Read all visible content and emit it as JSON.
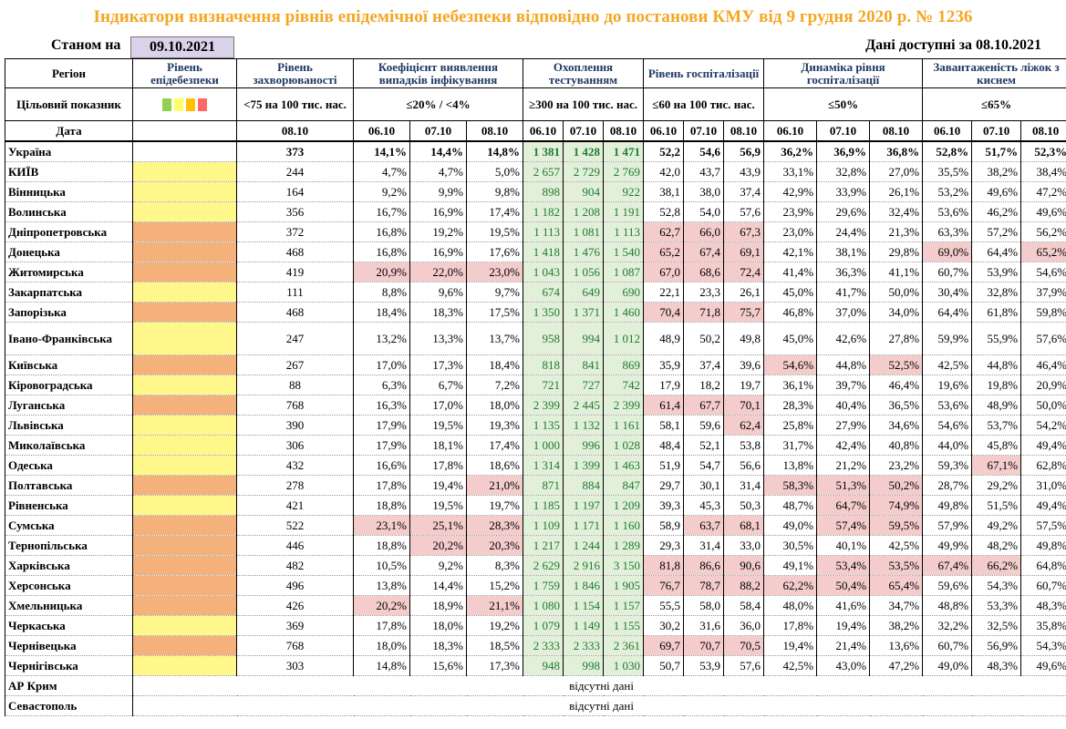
{
  "title": "Індикатори визначення рівнів епідемічної небезпеки відповідно до постанови КМУ від 9 грудня 2020 р. № 1236",
  "as_of_label": "Станом на",
  "as_of_date": "09.10.2021",
  "available_label": "Дані доступні за 08.10.2021",
  "headers": {
    "region": "Регіон",
    "level": "Рівень епідебезпеки",
    "incidence": "Рівень захворюваності",
    "positivity": "Коефіцієнт виявлення випадків інфікування",
    "testing": "Охоплення тестуванням",
    "hosp": "Рівень госпіталізації",
    "hosp_dyn": "Динаміка рівня госпіталізації",
    "oxygen": "Завантаженість ліжок з киснем",
    "target": "Цільовий показник",
    "date": "Дата"
  },
  "targets": {
    "incidence": "<75 на 100 тис. нас.",
    "positivity": "≤20% / <4%",
    "testing": "≥300 на 100 тис. нас.",
    "hosp": "≤60 на 100 тис. нас.",
    "hosp_dyn": "≤50%",
    "oxygen": "≤65%"
  },
  "legend_colors": [
    "#92d050",
    "#ffff66",
    "#ffc000",
    "#ff6666"
  ],
  "dates": {
    "incidence": "08.10",
    "triple": [
      "06.10",
      "07.10",
      "08.10"
    ]
  },
  "ukraine": {
    "name": "Україна",
    "incidence": "373",
    "positivity": [
      "14,1%",
      "14,4%",
      "14,8%"
    ],
    "testing": [
      "1 381",
      "1 428",
      "1 471"
    ],
    "hosp": [
      "52,2",
      "54,6",
      "56,9"
    ],
    "hosp_dyn": [
      "36,2%",
      "36,9%",
      "36,8%"
    ],
    "oxygen": [
      "52,8%",
      "51,7%",
      "52,3%"
    ]
  },
  "regions": [
    {
      "name": "КИЇВ",
      "level": "yellow",
      "incidence": "244",
      "positivity": [
        "4,7%",
        "4,7%",
        "5,0%"
      ],
      "testing": [
        "2 657",
        "2 729",
        "2 769"
      ],
      "hosp": [
        "42,0",
        "43,7",
        "43,9"
      ],
      "hosp_dyn": [
        "33,1%",
        "32,8%",
        "27,0%"
      ],
      "oxygen": [
        "35,5%",
        "38,2%",
        "38,4%"
      ],
      "red": []
    },
    {
      "name": "Вінницька",
      "level": "yellow",
      "incidence": "164",
      "positivity": [
        "9,2%",
        "9,9%",
        "9,8%"
      ],
      "testing": [
        "898",
        "904",
        "922"
      ],
      "hosp": [
        "38,1",
        "38,0",
        "37,4"
      ],
      "hosp_dyn": [
        "42,9%",
        "33,9%",
        "26,1%"
      ],
      "oxygen": [
        "53,2%",
        "49,6%",
        "47,2%"
      ],
      "red": []
    },
    {
      "name": "Волинська",
      "level": "yellow",
      "incidence": "356",
      "positivity": [
        "16,7%",
        "16,9%",
        "17,4%"
      ],
      "testing": [
        "1 182",
        "1 208",
        "1 191"
      ],
      "hosp": [
        "52,8",
        "54,0",
        "57,6"
      ],
      "hosp_dyn": [
        "23,9%",
        "29,6%",
        "32,4%"
      ],
      "oxygen": [
        "53,6%",
        "46,2%",
        "49,6%"
      ],
      "red": []
    },
    {
      "name": "Дніпропетровська",
      "level": "orange",
      "incidence": "372",
      "positivity": [
        "16,8%",
        "19,2%",
        "19,5%"
      ],
      "testing": [
        "1 113",
        "1 081",
        "1 113"
      ],
      "hosp": [
        "62,7",
        "66,0",
        "67,3"
      ],
      "hosp_dyn": [
        "23,0%",
        "24,4%",
        "21,3%"
      ],
      "oxygen": [
        "63,3%",
        "57,2%",
        "56,2%"
      ],
      "red": [
        "h0",
        "h1",
        "h2"
      ]
    },
    {
      "name": "Донецька",
      "level": "orange",
      "incidence": "468",
      "positivity": [
        "16,8%",
        "16,9%",
        "17,6%"
      ],
      "testing": [
        "1 418",
        "1 476",
        "1 540"
      ],
      "hosp": [
        "65,2",
        "67,4",
        "69,1"
      ],
      "hosp_dyn": [
        "42,1%",
        "38,1%",
        "29,8%"
      ],
      "oxygen": [
        "69,0%",
        "64,4%",
        "65,2%"
      ],
      "red": [
        "h0",
        "h1",
        "h2",
        "o0",
        "o2"
      ]
    },
    {
      "name": "Житомирська",
      "level": "orange",
      "incidence": "419",
      "positivity": [
        "20,9%",
        "22,0%",
        "23,0%"
      ],
      "testing": [
        "1 043",
        "1 056",
        "1 087"
      ],
      "hosp": [
        "67,0",
        "68,6",
        "72,4"
      ],
      "hosp_dyn": [
        "41,4%",
        "36,3%",
        "41,1%"
      ],
      "oxygen": [
        "60,7%",
        "53,9%",
        "54,6%"
      ],
      "red": [
        "p0",
        "p1",
        "p2",
        "h0",
        "h1",
        "h2"
      ]
    },
    {
      "name": "Закарпатська",
      "level": "yellow",
      "incidence": "111",
      "positivity": [
        "8,8%",
        "9,6%",
        "9,7%"
      ],
      "testing": [
        "674",
        "649",
        "690"
      ],
      "hosp": [
        "22,1",
        "23,3",
        "26,1"
      ],
      "hosp_dyn": [
        "45,0%",
        "41,7%",
        "50,0%"
      ],
      "oxygen": [
        "30,4%",
        "32,8%",
        "37,9%"
      ],
      "red": []
    },
    {
      "name": "Запорізька",
      "level": "orange",
      "incidence": "468",
      "positivity": [
        "18,4%",
        "18,3%",
        "17,5%"
      ],
      "testing": [
        "1 350",
        "1 371",
        "1 460"
      ],
      "hosp": [
        "70,4",
        "71,8",
        "75,7"
      ],
      "hosp_dyn": [
        "46,8%",
        "37,0%",
        "34,0%"
      ],
      "oxygen": [
        "64,4%",
        "61,8%",
        "59,8%"
      ],
      "red": [
        "h0",
        "h1",
        "h2"
      ]
    },
    {
      "name": "Івано-Франківська",
      "level": "yellow",
      "incidence": "247",
      "positivity": [
        "13,2%",
        "13,3%",
        "13,7%"
      ],
      "testing": [
        "958",
        "994",
        "1 012"
      ],
      "hosp": [
        "48,9",
        "50,2",
        "49,8"
      ],
      "hosp_dyn": [
        "45,0%",
        "42,6%",
        "27,8%"
      ],
      "oxygen": [
        "59,9%",
        "55,9%",
        "57,6%"
      ],
      "red": [],
      "tall": true
    },
    {
      "name": "Київська",
      "level": "orange",
      "incidence": "267",
      "positivity": [
        "17,0%",
        "17,3%",
        "18,4%"
      ],
      "testing": [
        "818",
        "841",
        "869"
      ],
      "hosp": [
        "35,9",
        "37,4",
        "39,6"
      ],
      "hosp_dyn": [
        "54,6%",
        "44,8%",
        "52,5%"
      ],
      "oxygen": [
        "42,5%",
        "44,8%",
        "46,4%"
      ],
      "red": [
        "d0",
        "d2"
      ]
    },
    {
      "name": "Кіровоградська",
      "level": "yellow",
      "incidence": "88",
      "positivity": [
        "6,3%",
        "6,7%",
        "7,2%"
      ],
      "testing": [
        "721",
        "727",
        "742"
      ],
      "hosp": [
        "17,9",
        "18,2",
        "19,7"
      ],
      "hosp_dyn": [
        "36,1%",
        "39,7%",
        "46,4%"
      ],
      "oxygen": [
        "19,6%",
        "19,8%",
        "20,9%"
      ],
      "red": []
    },
    {
      "name": "Луганська",
      "level": "orange",
      "incidence": "768",
      "positivity": [
        "16,3%",
        "17,0%",
        "18,0%"
      ],
      "testing": [
        "2 399",
        "2 445",
        "2 399"
      ],
      "hosp": [
        "61,4",
        "67,7",
        "70,1"
      ],
      "hosp_dyn": [
        "28,3%",
        "40,4%",
        "36,5%"
      ],
      "oxygen": [
        "53,6%",
        "48,9%",
        "50,0%"
      ],
      "red": [
        "h0",
        "h1",
        "h2"
      ]
    },
    {
      "name": "Львівська",
      "level": "yellow",
      "incidence": "390",
      "positivity": [
        "17,9%",
        "19,5%",
        "19,3%"
      ],
      "testing": [
        "1 135",
        "1 132",
        "1 161"
      ],
      "hosp": [
        "58,1",
        "59,6",
        "62,4"
      ],
      "hosp_dyn": [
        "25,8%",
        "27,9%",
        "34,6%"
      ],
      "oxygen": [
        "54,6%",
        "53,7%",
        "54,2%"
      ],
      "red": [
        "h2"
      ]
    },
    {
      "name": "Миколаївська",
      "level": "yellow",
      "incidence": "306",
      "positivity": [
        "17,9%",
        "18,1%",
        "17,4%"
      ],
      "testing": [
        "1 000",
        "996",
        "1 028"
      ],
      "hosp": [
        "48,4",
        "52,1",
        "53,8"
      ],
      "hosp_dyn": [
        "31,7%",
        "42,4%",
        "40,8%"
      ],
      "oxygen": [
        "44,0%",
        "45,8%",
        "49,4%"
      ],
      "red": []
    },
    {
      "name": "Одеська",
      "level": "yellow",
      "incidence": "432",
      "positivity": [
        "16,6%",
        "17,8%",
        "18,6%"
      ],
      "testing": [
        "1 314",
        "1 399",
        "1 463"
      ],
      "hosp": [
        "51,9",
        "54,7",
        "56,6"
      ],
      "hosp_dyn": [
        "13,8%",
        "21,2%",
        "23,2%"
      ],
      "oxygen": [
        "59,3%",
        "67,1%",
        "62,8%"
      ],
      "red": [
        "o1"
      ]
    },
    {
      "name": "Полтавська",
      "level": "orange",
      "incidence": "278",
      "positivity": [
        "17,8%",
        "19,4%",
        "21,0%"
      ],
      "testing": [
        "871",
        "884",
        "847"
      ],
      "hosp": [
        "29,7",
        "30,1",
        "31,4"
      ],
      "hosp_dyn": [
        "58,3%",
        "51,3%",
        "50,2%"
      ],
      "oxygen": [
        "28,7%",
        "29,2%",
        "31,0%"
      ],
      "red": [
        "p2",
        "d0",
        "d1",
        "d2"
      ]
    },
    {
      "name": "Рівненська",
      "level": "yellow",
      "incidence": "421",
      "positivity": [
        "18,8%",
        "19,5%",
        "19,7%"
      ],
      "testing": [
        "1 185",
        "1 197",
        "1 209"
      ],
      "hosp": [
        "39,3",
        "45,3",
        "50,3"
      ],
      "hosp_dyn": [
        "48,7%",
        "64,7%",
        "74,9%"
      ],
      "oxygen": [
        "49,8%",
        "51,5%",
        "49,4%"
      ],
      "red": [
        "d1",
        "d2"
      ]
    },
    {
      "name": "Сумська",
      "level": "orange",
      "incidence": "522",
      "positivity": [
        "23,1%",
        "25,1%",
        "28,3%"
      ],
      "testing": [
        "1 109",
        "1 171",
        "1 160"
      ],
      "hosp": [
        "58,9",
        "63,7",
        "68,1"
      ],
      "hosp_dyn": [
        "49,0%",
        "57,4%",
        "59,5%"
      ],
      "oxygen": [
        "57,9%",
        "49,2%",
        "57,5%"
      ],
      "red": [
        "p0",
        "p1",
        "p2",
        "h1",
        "h2",
        "d1",
        "d2"
      ]
    },
    {
      "name": "Тернопільська",
      "level": "orange",
      "incidence": "446",
      "positivity": [
        "18,8%",
        "20,2%",
        "20,3%"
      ],
      "testing": [
        "1 217",
        "1 244",
        "1 289"
      ],
      "hosp": [
        "29,3",
        "31,4",
        "33,0"
      ],
      "hosp_dyn": [
        "30,5%",
        "40,1%",
        "42,5%"
      ],
      "oxygen": [
        "49,9%",
        "48,2%",
        "49,8%"
      ],
      "red": [
        "p1",
        "p2"
      ]
    },
    {
      "name": "Харківська",
      "level": "orange",
      "incidence": "482",
      "positivity": [
        "10,5%",
        "9,2%",
        "8,3%"
      ],
      "testing": [
        "2 629",
        "2 916",
        "3 150"
      ],
      "hosp": [
        "81,8",
        "86,6",
        "90,6"
      ],
      "hosp_dyn": [
        "49,1%",
        "53,4%",
        "53,5%"
      ],
      "oxygen": [
        "67,4%",
        "66,2%",
        "64,8%"
      ],
      "red": [
        "h0",
        "h1",
        "h2",
        "d1",
        "d2",
        "o0",
        "o1"
      ]
    },
    {
      "name": "Херсонська",
      "level": "orange",
      "incidence": "496",
      "positivity": [
        "13,8%",
        "14,4%",
        "15,2%"
      ],
      "testing": [
        "1 759",
        "1 846",
        "1 905"
      ],
      "hosp": [
        "76,7",
        "78,7",
        "88,2"
      ],
      "hosp_dyn": [
        "62,2%",
        "50,4%",
        "65,4%"
      ],
      "oxygen": [
        "59,6%",
        "54,3%",
        "60,7%"
      ],
      "red": [
        "h0",
        "h1",
        "h2",
        "d0",
        "d1",
        "d2"
      ]
    },
    {
      "name": "Хмельницька",
      "level": "orange",
      "incidence": "426",
      "positivity": [
        "20,2%",
        "18,9%",
        "21,1%"
      ],
      "testing": [
        "1 080",
        "1 154",
        "1 157"
      ],
      "hosp": [
        "55,5",
        "58,0",
        "58,4"
      ],
      "hosp_dyn": [
        "48,0%",
        "41,6%",
        "34,7%"
      ],
      "oxygen": [
        "48,8%",
        "53,3%",
        "48,3%"
      ],
      "red": [
        "p0",
        "p2"
      ]
    },
    {
      "name": "Черкаська",
      "level": "yellow",
      "incidence": "369",
      "positivity": [
        "17,8%",
        "18,0%",
        "19,2%"
      ],
      "testing": [
        "1 079",
        "1 149",
        "1 155"
      ],
      "hosp": [
        "30,2",
        "31,6",
        "36,0"
      ],
      "hosp_dyn": [
        "17,8%",
        "19,4%",
        "38,2%"
      ],
      "oxygen": [
        "32,2%",
        "32,5%",
        "35,8%"
      ],
      "red": []
    },
    {
      "name": "Чернівецька",
      "level": "orange",
      "incidence": "768",
      "positivity": [
        "18,0%",
        "18,3%",
        "18,5%"
      ],
      "testing": [
        "2 333",
        "2 333",
        "2 361"
      ],
      "hosp": [
        "69,7",
        "70,7",
        "70,5"
      ],
      "hosp_dyn": [
        "19,4%",
        "21,4%",
        "13,6%"
      ],
      "oxygen": [
        "60,7%",
        "56,9%",
        "54,3%"
      ],
      "red": [
        "h0",
        "h1",
        "h2"
      ]
    },
    {
      "name": "Чернігівська",
      "level": "yellow",
      "incidence": "303",
      "positivity": [
        "14,8%",
        "15,6%",
        "17,3%"
      ],
      "testing": [
        "948",
        "998",
        "1 030"
      ],
      "hosp": [
        "50,7",
        "53,9",
        "57,6"
      ],
      "hosp_dyn": [
        "42,5%",
        "43,0%",
        "47,2%"
      ],
      "oxygen": [
        "49,0%",
        "48,3%",
        "49,6%"
      ],
      "red": []
    }
  ],
  "no_data": [
    {
      "name": "АР Крим",
      "text": "відсутні дані"
    },
    {
      "name": "Севастополь",
      "text": "відсутні дані"
    }
  ]
}
